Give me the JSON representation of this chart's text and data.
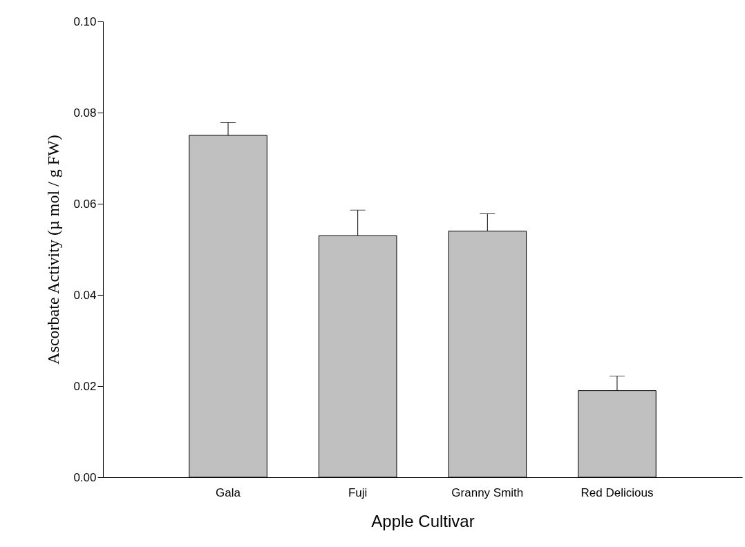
{
  "chart_data": {
    "type": "bar",
    "xlabel": "Apple Cultivar",
    "ylabel": "Ascorbate Activity (µ mol / g FW)",
    "categories": [
      "Gala",
      "Fuji",
      "Granny Smith",
      "Red Delicious"
    ],
    "values": [
      0.075,
      0.053,
      0.054,
      0.019
    ],
    "color": "#c0c0c0",
    "errors": [
      [
        0.075,
        0.0778
      ],
      [
        0.053,
        0.0586
      ],
      [
        0.054,
        0.0578
      ],
      [
        0.019,
        0.0222
      ]
    ],
    "ylim": [
      0,
      0.1
    ],
    "yticks": [
      {
        "value": 0,
        "label": "0.00"
      },
      {
        "value": 0.02,
        "label": "0.02"
      },
      {
        "value": 0.04,
        "label": "0.04"
      },
      {
        "value": 0.06,
        "label": "0.06"
      },
      {
        "value": 0.08,
        "label": "0.08"
      },
      {
        "value": 0.1,
        "label": "0.10"
      }
    ],
    "grid": false
  }
}
